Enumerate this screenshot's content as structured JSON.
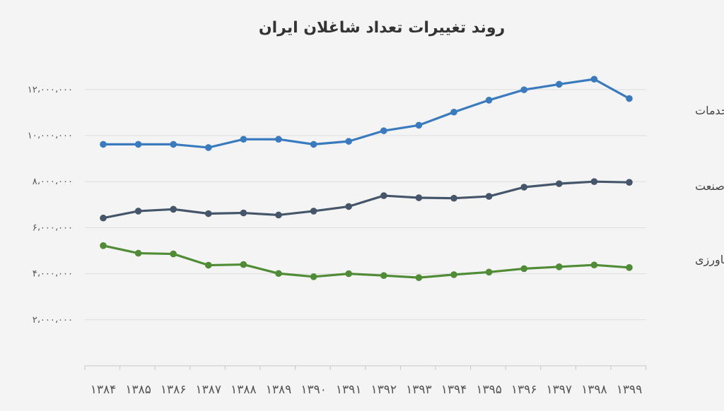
{
  "chart_data": {
    "type": "line",
    "title": "روند تغییرات تعداد شاغلان ایران",
    "x": [
      "۱۳۸۴",
      "۱۳۸۵",
      "۱۳۸۶",
      "۱۳۸۷",
      "۱۳۸۸",
      "۱۳۸۹",
      "۱۳۹۰",
      "۱۳۹۱",
      "۱۳۹۲",
      "۱۳۹۳",
      "۱۳۹۴",
      "۱۳۹۵",
      "۱۳۹۶",
      "۱۳۹۷",
      "۱۳۹۸",
      "۱۳۹۹"
    ],
    "y_ticks": [
      "۲،۰۰۰،۰۰۰",
      "۴،۰۰۰،۰۰۰",
      "۶،۰۰۰،۰۰۰",
      "۸،۰۰۰،۰۰۰",
      "۱۰،۰۰۰،۰۰۰",
      "۱۲،۰۰۰،۰۰۰"
    ],
    "y_tick_values": [
      2000000,
      4000000,
      6000000,
      8000000,
      10000000,
      12000000
    ],
    "ylim": [
      0,
      13000000
    ],
    "grid": true,
    "legend": "labels at right end of lines",
    "series": [
      {
        "name": "خدمات",
        "color": "#3a7bbf",
        "values": [
          9620000,
          9620000,
          9620000,
          9480000,
          9840000,
          9840000,
          9620000,
          9750000,
          10210000,
          10450000,
          11020000,
          11540000,
          11990000,
          12230000,
          12450000,
          11610000
        ]
      },
      {
        "name": "صنعت",
        "color": "#45566a",
        "values": [
          6420000,
          6720000,
          6800000,
          6610000,
          6640000,
          6550000,
          6720000,
          6920000,
          7390000,
          7300000,
          7280000,
          7360000,
          7760000,
          7910000,
          8000000,
          7970000
        ]
      },
      {
        "name": "کشاورزی",
        "color": "#4f8c35",
        "values": [
          5220000,
          4890000,
          4860000,
          4370000,
          4400000,
          4010000,
          3870000,
          4000000,
          3920000,
          3830000,
          3960000,
          4070000,
          4220000,
          4300000,
          4380000,
          4270000
        ]
      }
    ]
  }
}
